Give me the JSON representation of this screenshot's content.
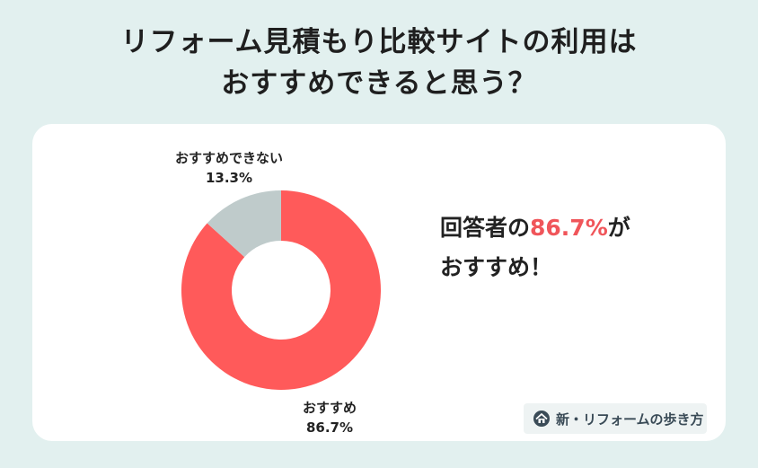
{
  "title": {
    "line1": "リフォーム見積もり比較サイトの利用は",
    "line2": "おすすめできると思う？"
  },
  "callout": {
    "prefix": "回答者の",
    "highlight": "86.7%",
    "suffix": "が",
    "line2": "おすすめ！"
  },
  "logo": {
    "icon": "house-logo-icon",
    "text": "新・リフォームの歩き方"
  },
  "colors": {
    "background": "#e2f0ef",
    "card": "#ffffff",
    "recommend": "#ff5a5a",
    "not_recommend": "#bfcbcb",
    "accent_text": "#f0555a"
  },
  "chart_data": {
    "type": "pie",
    "donut": true,
    "slices": [
      {
        "label": "おすすめ",
        "value": 86.7,
        "value_label": "86.7%",
        "color": "#ff5a5a"
      },
      {
        "label": "おすすめできない",
        "value": 13.3,
        "value_label": "13.3%",
        "color": "#bfcbcb"
      }
    ],
    "start": "top",
    "direction": "clockwise",
    "legend": "none"
  }
}
